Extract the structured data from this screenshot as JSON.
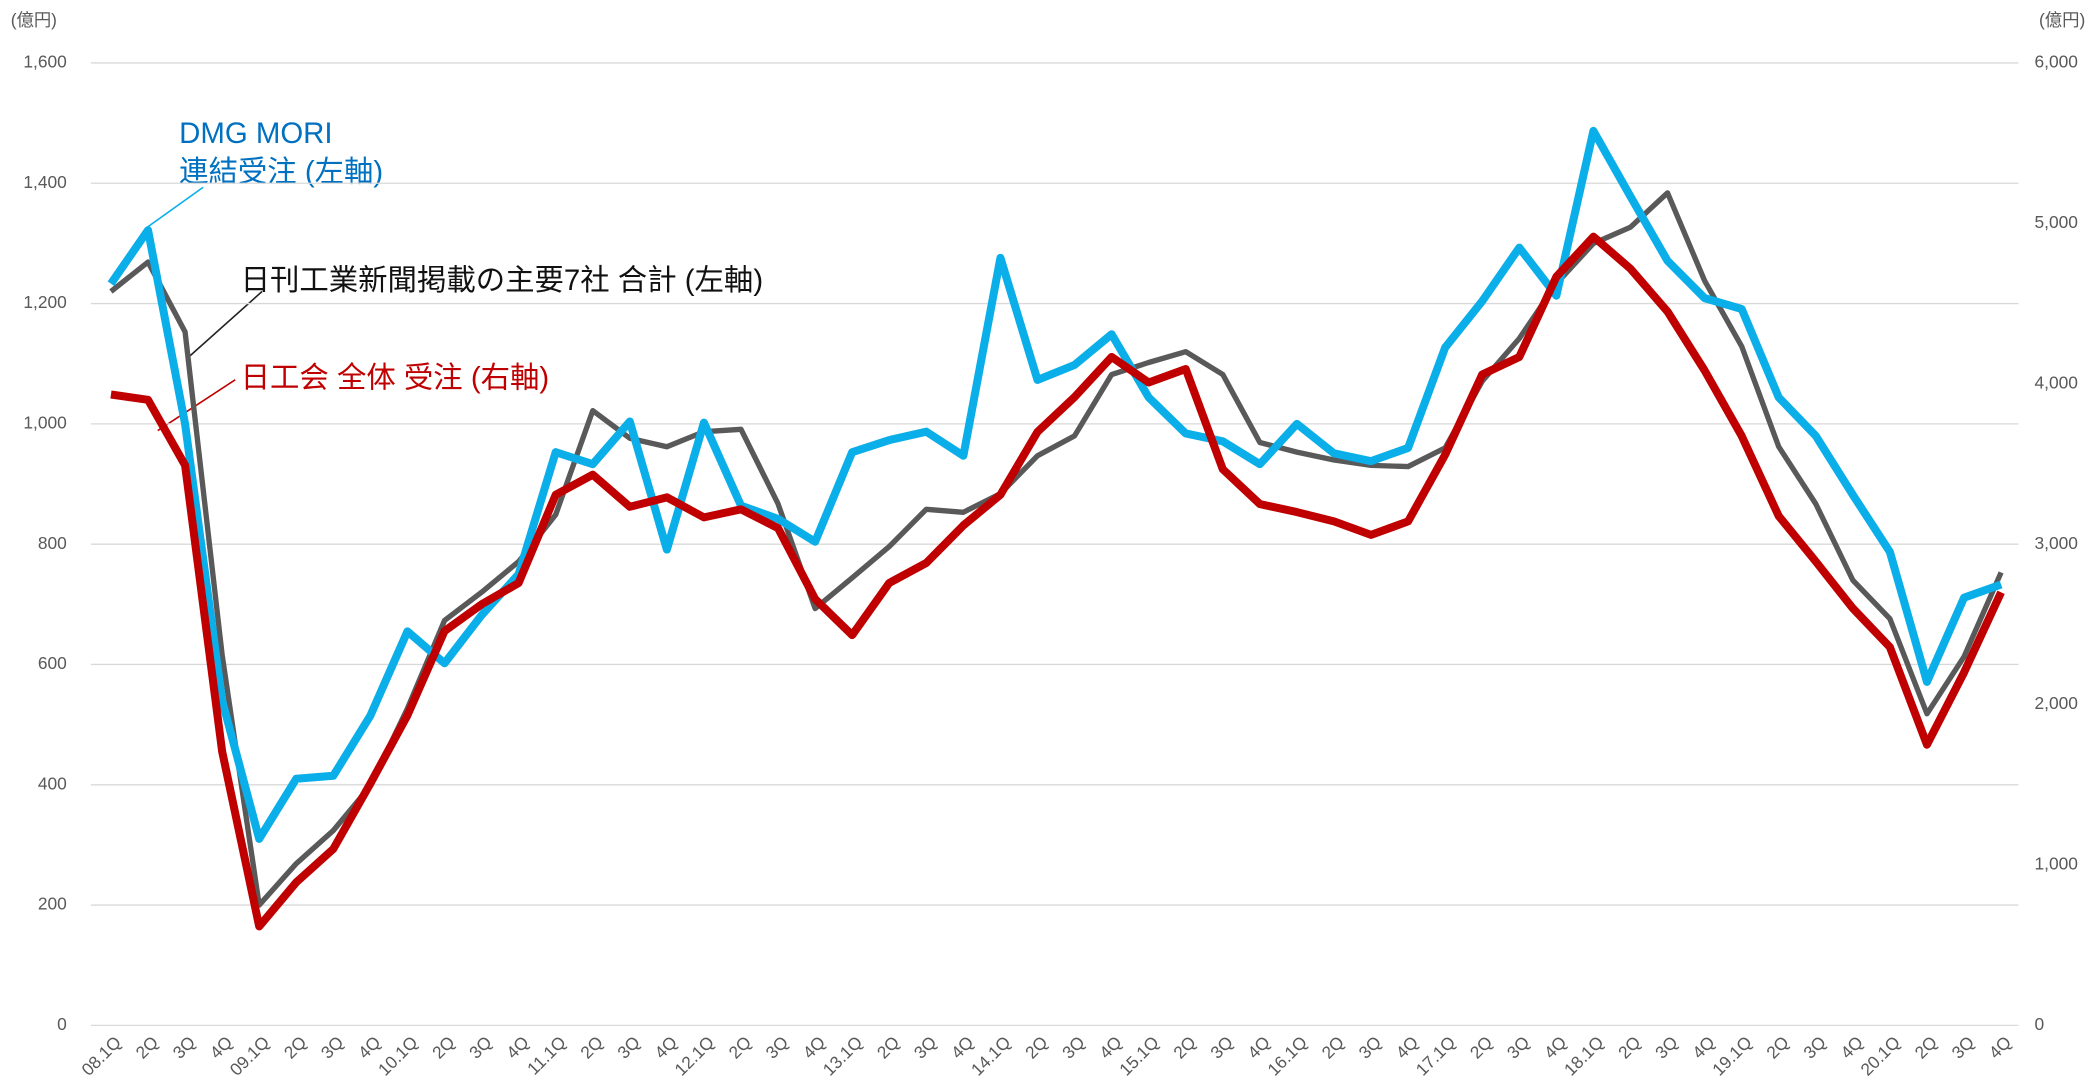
{
  "chart_data": {
    "type": "line",
    "ylabel": "(億円)",
    "y2label": "(億円)",
    "categories": [
      "08.1Q",
      "2Q",
      "3Q",
      "4Q",
      "09.1Q",
      "2Q",
      "3Q",
      "4Q",
      "10.1Q",
      "2Q",
      "3Q",
      "4Q",
      "11.1Q",
      "2Q",
      "3Q",
      "4Q",
      "12.1Q",
      "2Q",
      "3Q",
      "4Q",
      "13.1Q",
      "2Q",
      "3Q",
      "4Q",
      "14.1Q",
      "2Q",
      "3Q",
      "4Q",
      "15.1Q",
      "2Q",
      "3Q",
      "4Q",
      "16.1Q",
      "2Q",
      "3Q",
      "4Q",
      "17.1Q",
      "2Q",
      "3Q",
      "4Q",
      "18.1Q",
      "2Q",
      "3Q",
      "4Q",
      "19.1Q",
      "2Q",
      "3Q",
      "4Q",
      "20.1Q",
      "2Q",
      "3Q",
      "4Q"
    ],
    "series": [
      {
        "name": "DMG MORI",
        "color": "#0aaee8",
        "values": [
          1233,
          1322,
          1000,
          540,
          310,
          410,
          415,
          515,
          655,
          602,
          682,
          750,
          953,
          933,
          1004,
          791,
          1002,
          864,
          842,
          804,
          953,
          973,
          987,
          947,
          1276,
          1073,
          1098,
          1149,
          1044,
          984,
          971,
          933,
          1000,
          951,
          938,
          960,
          1127,
          1204,
          1293,
          1213,
          1487,
          1378,
          1271,
          1209,
          1191,
          1044,
          980,
          882,
          787,
          571,
          711,
          733
        ]
      },
      {
        "name": "日刊工業新聞掲載の主要7社 合計 (左軸)",
        "color": "#595959",
        "values": [
          1220,
          1269,
          1153,
          616,
          200,
          269,
          324,
          398,
          527,
          673,
          720,
          771,
          849,
          1022,
          976,
          962,
          987,
          991,
          867,
          693,
          744,
          796,
          858,
          853,
          884,
          947,
          980,
          1082,
          1102,
          1120,
          1082,
          969,
          953,
          940,
          931,
          929,
          960,
          1071,
          1142,
          1233,
          1300,
          1327,
          1384,
          1238,
          1129,
          962,
          867,
          740,
          676,
          518,
          613,
          753
        ]
      },
      {
        "name": "日工会 全体 受注 (右軸)",
        "color": "#c00000",
        "axis": "y2",
        "values": [
          3933,
          3900,
          3492,
          1708,
          617,
          892,
          1100,
          1508,
          1933,
          2458,
          2625,
          2758,
          3308,
          3433,
          3233,
          3292,
          3167,
          3217,
          3100,
          2658,
          2433,
          2758,
          2883,
          3117,
          3308,
          3700,
          3917,
          4167,
          4008,
          4092,
          3467,
          3250,
          3200,
          3142,
          3058,
          3142,
          3558,
          4058,
          4167,
          4667,
          4917,
          4717,
          4450,
          4083,
          3675,
          3175,
          2892,
          2600,
          2358,
          1750,
          2200,
          2700
        ]
      }
    ],
    "annotations": [
      "連結受注 (左軸)"
    ],
    "ylim": [
      0,
      1600
    ],
    "yticks": [
      0,
      200,
      400,
      600,
      800,
      {
        "value": 1000,
        "label": "1,000"
      },
      {
        "value": 1200,
        "label": "1,200"
      },
      {
        "value": 1400,
        "label": "1,400"
      },
      {
        "value": 1600,
        "label": "1,600"
      }
    ],
    "y2lim": [
      0,
      6000
    ],
    "y2ticks": [
      0,
      {
        "value": 1000,
        "label": "1,000"
      },
      {
        "value": 2000,
        "label": "2,000"
      },
      {
        "value": 3000,
        "label": "3,000"
      },
      {
        "value": 4000,
        "label": "4,000"
      },
      {
        "value": 5000,
        "label": "5,000"
      },
      {
        "value": 6000,
        "label": "6,000"
      }
    ],
    "grid": true
  }
}
